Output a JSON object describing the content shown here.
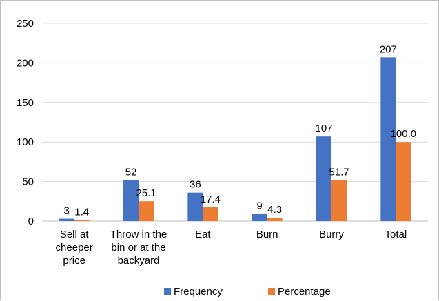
{
  "chart_data": {
    "type": "bar",
    "title": "",
    "xlabel": "",
    "ylabel": "",
    "categories": [
      [
        "Sell at",
        "cheeper",
        "price"
      ],
      [
        "Throw in the",
        "bin or at the",
        "backyard"
      ],
      [
        "Eat"
      ],
      [
        "Burn"
      ],
      [
        "Burry"
      ],
      [
        "Total"
      ]
    ],
    "series": [
      {
        "name": "Frequency",
        "color": "#4472c4",
        "values": [
          3,
          52,
          36,
          9,
          107,
          207
        ],
        "labels": [
          "3",
          "52",
          "36",
          "9",
          "107",
          "207"
        ]
      },
      {
        "name": "Percentage",
        "color": "#ed7d31",
        "values": [
          1.4,
          25.1,
          17.4,
          4.3,
          51.7,
          100.0
        ],
        "labels": [
          "1.4",
          "25.1",
          "17.4",
          "4.3",
          "51.7",
          "100.0"
        ]
      }
    ],
    "ylim": [
      0,
      250
    ],
    "yticks": [
      0,
      50,
      100,
      150,
      200,
      250
    ],
    "grid": true,
    "legend_position": "bottom"
  }
}
